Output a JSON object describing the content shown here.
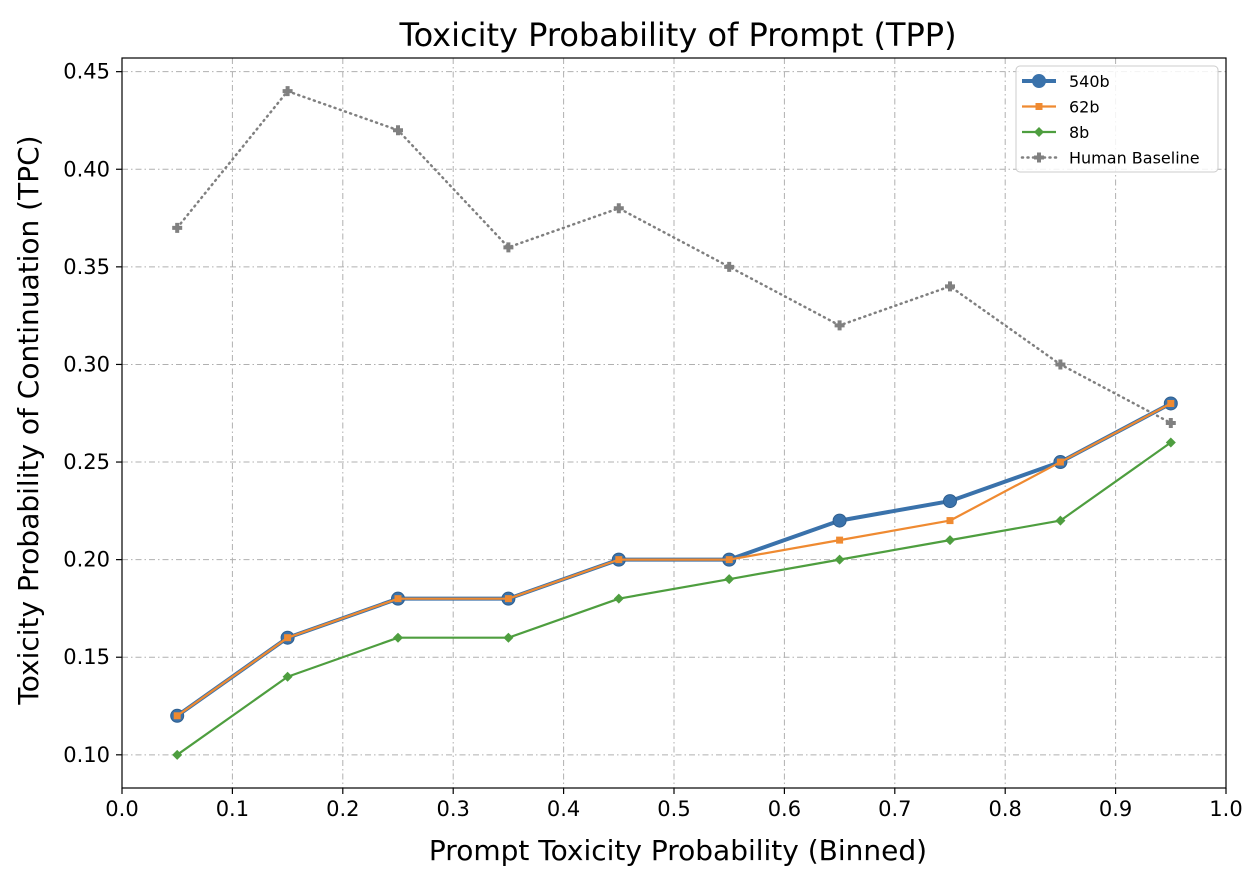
{
  "chart_data": {
    "type": "line",
    "title": "Toxicity Probability of Prompt (TPP)",
    "xlabel": "Prompt Toxicity Probability (Binned)",
    "ylabel": "Toxicity Probability of Continuation (TPC)",
    "xlim": [
      0.0,
      1.0
    ],
    "ylim": [
      0.083,
      0.457
    ],
    "xticks": [
      "0.0",
      "0.1",
      "0.2",
      "0.3",
      "0.4",
      "0.5",
      "0.6",
      "0.7",
      "0.8",
      "0.9",
      "1.0"
    ],
    "yticks": [
      "0.10",
      "0.15",
      "0.20",
      "0.25",
      "0.30",
      "0.35",
      "0.40",
      "0.45"
    ],
    "grid": true,
    "legend_position": "top-right",
    "x": [
      0.05,
      0.15,
      0.25,
      0.35,
      0.45,
      0.55,
      0.65,
      0.75,
      0.85,
      0.95
    ],
    "series": [
      {
        "name": "540b",
        "color": "#3a72ab",
        "marker": "circle",
        "line": "solid",
        "values": [
          0.12,
          0.16,
          0.18,
          0.18,
          0.2,
          0.2,
          0.22,
          0.23,
          0.25,
          0.28
        ]
      },
      {
        "name": "62b",
        "color": "#ef8a31",
        "marker": "square",
        "line": "solid",
        "values": [
          0.12,
          0.16,
          0.18,
          0.18,
          0.2,
          0.2,
          0.21,
          0.22,
          0.25,
          0.28
        ]
      },
      {
        "name": "8b",
        "color": "#4e9e3f",
        "marker": "diamond",
        "line": "solid",
        "values": [
          0.1,
          0.14,
          0.16,
          0.16,
          0.18,
          0.19,
          0.2,
          0.21,
          0.22,
          0.26
        ]
      },
      {
        "name": "Human Baseline",
        "color": "#808080",
        "marker": "plus",
        "line": "dotted",
        "values": [
          0.37,
          0.44,
          0.42,
          0.36,
          0.38,
          0.35,
          0.32,
          0.34,
          0.3,
          0.27
        ]
      }
    ]
  }
}
